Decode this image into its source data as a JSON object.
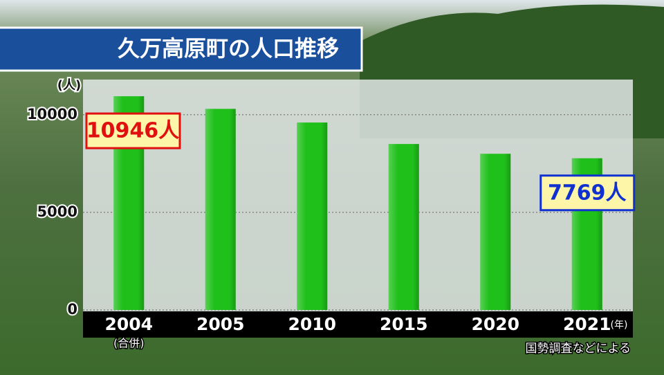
{
  "chart_data": {
    "type": "bar",
    "title": "久万高原町の人口推移",
    "y_unit": "(人)",
    "x_unit": "(年)",
    "source": "国勢調査などによる",
    "categories": [
      "2004",
      "2005",
      "2010",
      "2015",
      "2020",
      "2021"
    ],
    "category_notes": [
      "(合併)",
      null,
      null,
      null,
      null,
      null
    ],
    "values": [
      10946,
      10300,
      9600,
      8500,
      8000,
      7769
    ],
    "value_labels": [
      "10946人",
      null,
      null,
      null,
      null,
      "7769人"
    ],
    "value_label_colors": [
      "#e01010",
      null,
      null,
      null,
      null,
      "#1030d0"
    ],
    "color": "#1fc01a",
    "ylim": [
      0,
      11800
    ],
    "yticks": [
      0,
      5000,
      10000
    ],
    "grid": true
  }
}
